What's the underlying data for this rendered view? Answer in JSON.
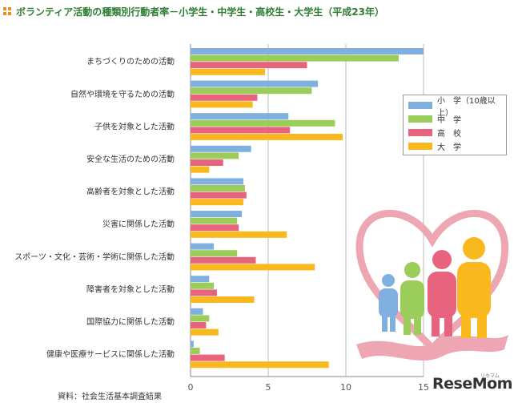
{
  "title": "ボランティア活動の種類別行動者率－小学生・中学生・高校生・大学生（平成23年）",
  "source": "資料：社会生活基本調査結果",
  "logo": {
    "text": "ReseMom",
    "ruby": "リセマム"
  },
  "colors": {
    "elementary": "#7fb0e0",
    "junior_high": "#9acd5a",
    "high_school": "#e8647e",
    "university": "#f9b81e",
    "heart": "#eea6b2"
  },
  "chart_data": {
    "type": "bar",
    "orientation": "horizontal",
    "title": "ボランティア活動の種類別行動者率－小学生・中学生・高校生・大学生（平成23年）",
    "categories": [
      "まちづくりのための活動",
      "自然や環境を守るための活動",
      "子供を対象とした活動",
      "安全な生活のための活動",
      "高齢者を対象とした活動",
      "災害に関係した活動",
      "スポーツ・文化・芸術・学術に関係した活動",
      "障害者を対象とした活動",
      "国際協力に関係した活動",
      "健康や医療サービスに関係した活動"
    ],
    "series": [
      {
        "name": "小　学（10歳以上）",
        "color": "#7fb0e0",
        "values": [
          15.0,
          8.2,
          6.3,
          3.9,
          3.4,
          3.3,
          1.5,
          1.2,
          0.8,
          0.2
        ]
      },
      {
        "name": "中　学",
        "color": "#9acd5a",
        "values": [
          13.4,
          7.8,
          9.3,
          3.1,
          3.5,
          3.0,
          3.0,
          1.5,
          1.2,
          0.6
        ]
      },
      {
        "name": "高　校",
        "color": "#e8647e",
        "values": [
          7.5,
          4.3,
          6.4,
          2.1,
          3.6,
          3.1,
          4.2,
          1.7,
          1.0,
          2.2
        ]
      },
      {
        "name": "大　学",
        "color": "#f9b81e",
        "values": [
          4.8,
          4.0,
          9.8,
          1.2,
          3.4,
          6.2,
          8.0,
          4.1,
          1.8,
          8.9
        ]
      }
    ],
    "xticks": [
      0,
      5,
      10,
      15
    ],
    "xlim": [
      0,
      15
    ],
    "grid": true,
    "legend_position": "right"
  }
}
